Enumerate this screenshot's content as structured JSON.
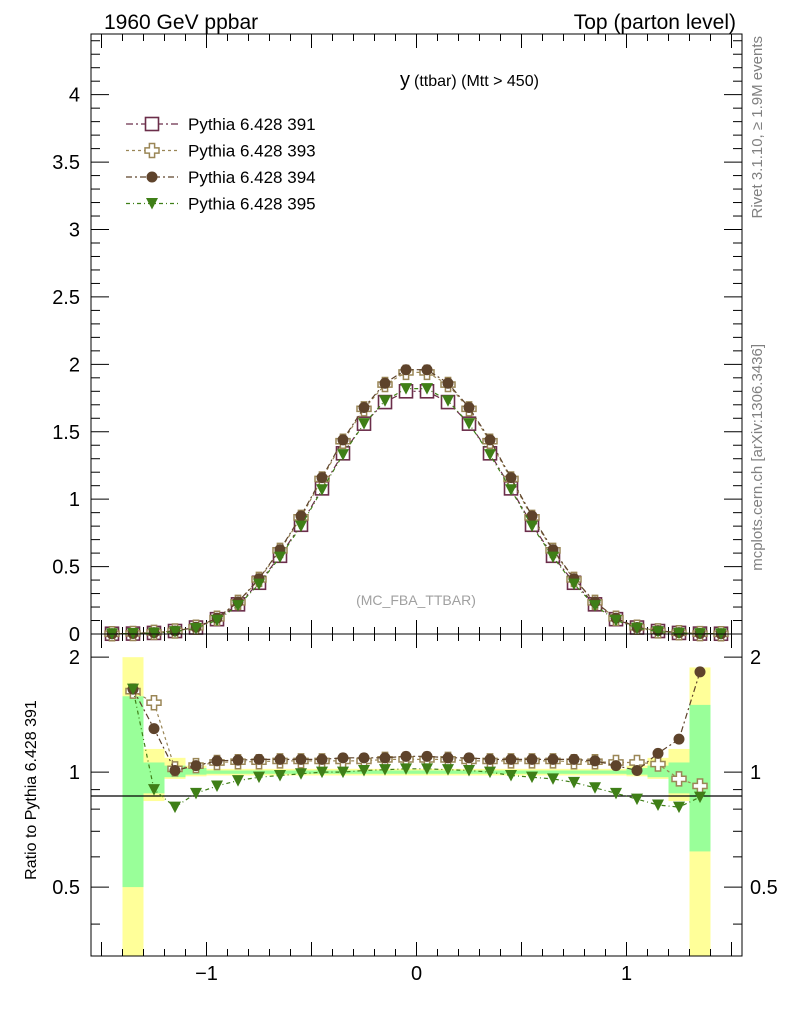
{
  "header": {
    "left": "1960 GeV ppbar",
    "right": "Top (parton level)"
  },
  "side": {
    "rivet": "Rivet 3.1.10, ≥ 1.9M events",
    "mcplots": "mcplots.cern.ch [arXiv:1306.3436]"
  },
  "colors": {
    "s391": "#6b2d4a",
    "s393": "#9a8656",
    "s394": "#5e432b",
    "s395": "#3f7f17",
    "band_inner": "#99ff99",
    "band_outer": "#ffff99"
  },
  "chart_data": [
    {
      "type": "line",
      "title": "y",
      "subtitle": "(ttbar) (Mtt > 450)",
      "watermark": "(MC_FBA_TTBAR)",
      "xlim": [
        -1.55,
        1.55
      ],
      "ylim": [
        0,
        4.45
      ],
      "yticks": [
        "0",
        "0.5",
        "1",
        "1.5",
        "2",
        "2.5",
        "3",
        "3.5",
        "4"
      ],
      "legend_position": "top-left",
      "x": [
        -1.45,
        -1.35,
        -1.25,
        -1.15,
        -1.05,
        -0.95,
        -0.85,
        -0.75,
        -0.65,
        -0.55,
        -0.45,
        -0.35,
        -0.25,
        -0.15,
        -0.05,
        0.05,
        0.15,
        0.25,
        0.35,
        0.45,
        0.55,
        0.65,
        0.75,
        0.85,
        0.95,
        1.05,
        1.15,
        1.25,
        1.35,
        1.45
      ],
      "series": [
        {
          "name": "Pythia 6.428 391",
          "marker": "open-square",
          "values": [
            0.002,
            0.003,
            0.008,
            0.022,
            0.048,
            0.11,
            0.22,
            0.38,
            0.58,
            0.81,
            1.08,
            1.34,
            1.56,
            1.72,
            1.8,
            1.8,
            1.72,
            1.56,
            1.34,
            1.08,
            0.81,
            0.58,
            0.38,
            0.22,
            0.11,
            0.048,
            0.022,
            0.008,
            0.003,
            0.002
          ]
        },
        {
          "name": "Pythia 6.428 393",
          "marker": "open-cross",
          "values": [
            0.002,
            0.004,
            0.012,
            0.022,
            0.05,
            0.117,
            0.235,
            0.405,
            0.62,
            0.865,
            1.15,
            1.43,
            1.67,
            1.85,
            1.94,
            1.94,
            1.85,
            1.67,
            1.43,
            1.15,
            0.865,
            0.62,
            0.405,
            0.235,
            0.117,
            0.05,
            0.023,
            0.009,
            0.003,
            0.002
          ]
        },
        {
          "name": "Pythia 6.428 394",
          "marker": "filled-circle",
          "values": [
            0.002,
            0.004,
            0.01,
            0.022,
            0.05,
            0.118,
            0.237,
            0.41,
            0.625,
            0.875,
            1.16,
            1.44,
            1.68,
            1.86,
            1.96,
            1.96,
            1.86,
            1.68,
            1.44,
            1.16,
            0.875,
            0.625,
            0.41,
            0.237,
            0.118,
            0.048,
            0.025,
            0.01,
            0.004,
            0.002
          ]
        },
        {
          "name": "Pythia 6.428 395",
          "marker": "filled-triangle-down",
          "values": [
            0.002,
            0.004,
            0.007,
            0.018,
            0.042,
            0.102,
            0.21,
            0.37,
            0.57,
            0.8,
            1.07,
            1.33,
            1.56,
            1.73,
            1.82,
            1.82,
            1.73,
            1.56,
            1.33,
            1.07,
            0.8,
            0.57,
            0.37,
            0.21,
            0.102,
            0.044,
            0.018,
            0.006,
            0.003,
            0.002
          ]
        }
      ]
    },
    {
      "type": "line",
      "ylabel": "Ratio to Pythia 6.428 391",
      "xlim": [
        -1.55,
        1.55
      ],
      "ylim": [
        0.33,
        2.3
      ],
      "yticks": [
        "0.5",
        "1",
        "2"
      ],
      "xticks": [
        "−1",
        "0",
        "1"
      ],
      "band_edges": [
        -1.4,
        -1.3,
        -1.2,
        -1.1,
        -1.0,
        1.0,
        1.1,
        1.2,
        1.3,
        1.4
      ],
      "band_inner": [
        [
          0.5,
          1.58
        ],
        [
          0.88,
          1.06
        ],
        [
          0.97,
          1.04
        ],
        [
          0.985,
          1.025
        ],
        [
          0.99,
          1.01
        ],
        [
          0.985,
          1.025
        ],
        [
          0.97,
          1.04
        ],
        [
          0.88,
          1.06
        ],
        [
          0.62,
          1.5
        ]
      ],
      "band_outer": [
        [
          0.33,
          2.0
        ],
        [
          0.84,
          1.15
        ],
        [
          0.96,
          1.09
        ],
        [
          0.975,
          1.04
        ],
        [
          0.98,
          1.02
        ],
        [
          0.975,
          1.04
        ],
        [
          0.96,
          1.09
        ],
        [
          0.84,
          1.15
        ],
        [
          0.33,
          1.88
        ]
      ],
      "x": [
        -1.35,
        -1.25,
        -1.15,
        -1.05,
        -0.95,
        -0.85,
        -0.75,
        -0.65,
        -0.55,
        -0.45,
        -0.35,
        -0.25,
        -0.15,
        -0.05,
        0.05,
        0.15,
        0.25,
        0.35,
        0.45,
        0.55,
        0.65,
        0.75,
        0.85,
        0.95,
        1.05,
        1.15,
        1.25,
        1.35
      ],
      "series": [
        {
          "name": "Pythia 6.428 393",
          "marker": "open-cross",
          "values": [
            1.63,
            1.52,
            1.02,
            1.04,
            1.06,
            1.065,
            1.065,
            1.07,
            1.07,
            1.07,
            1.07,
            1.07,
            1.08,
            1.08,
            1.08,
            1.08,
            1.07,
            1.07,
            1.07,
            1.07,
            1.07,
            1.065,
            1.065,
            1.06,
            1.06,
            1.05,
            0.96,
            0.92
          ]
        },
        {
          "name": "Pythia 6.428 394",
          "marker": "filled-circle",
          "values": [
            1.65,
            1.3,
            1.01,
            1.04,
            1.07,
            1.075,
            1.08,
            1.08,
            1.08,
            1.08,
            1.09,
            1.09,
            1.09,
            1.1,
            1.1,
            1.09,
            1.09,
            1.08,
            1.08,
            1.08,
            1.08,
            1.08,
            1.07,
            1.04,
            1.01,
            1.12,
            1.22,
            1.83
          ]
        },
        {
          "name": "Pythia 6.428 395",
          "marker": "filled-triangle-down",
          "values": [
            1.65,
            0.9,
            0.81,
            0.88,
            0.92,
            0.95,
            0.97,
            0.98,
            0.99,
            1.0,
            1.0,
            1.01,
            1.015,
            1.02,
            1.02,
            1.015,
            1.01,
            1.0,
            0.98,
            0.97,
            0.96,
            0.94,
            0.91,
            0.88,
            0.85,
            0.82,
            0.81,
            0.86
          ]
        }
      ]
    }
  ]
}
